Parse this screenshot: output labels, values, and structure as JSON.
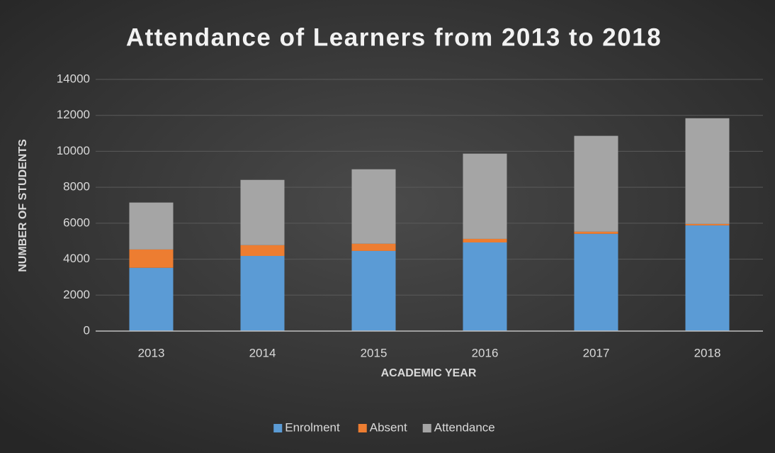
{
  "chart_data": {
    "type": "stacked_bar",
    "title": "Attendance of Learners from 2013 to 2018",
    "x_label": "ACADEMIC YEAR",
    "y_label": "NUMBER OF STUDENTS",
    "categories": [
      "2013",
      "2014",
      "2015",
      "2016",
      "2017",
      "2018"
    ],
    "series": [
      {
        "name": "Enrolment",
        "color": "#5b9bd5",
        "values": [
          3520,
          4180,
          4460,
          4930,
          5410,
          5880
        ]
      },
      {
        "name": "Absent",
        "color": "#ed7d31",
        "values": [
          1020,
          600,
          400,
          200,
          120,
          80
        ]
      },
      {
        "name": "Attendance",
        "color": "#a5a5a5",
        "values": [
          2610,
          3630,
          4140,
          4740,
          5330,
          5880
        ]
      }
    ],
    "ylim": [
      0,
      14000
    ],
    "yticks": [
      0,
      2000,
      4000,
      6000,
      8000,
      10000,
      12000,
      14000
    ],
    "grid": true,
    "legend": "bottom"
  }
}
